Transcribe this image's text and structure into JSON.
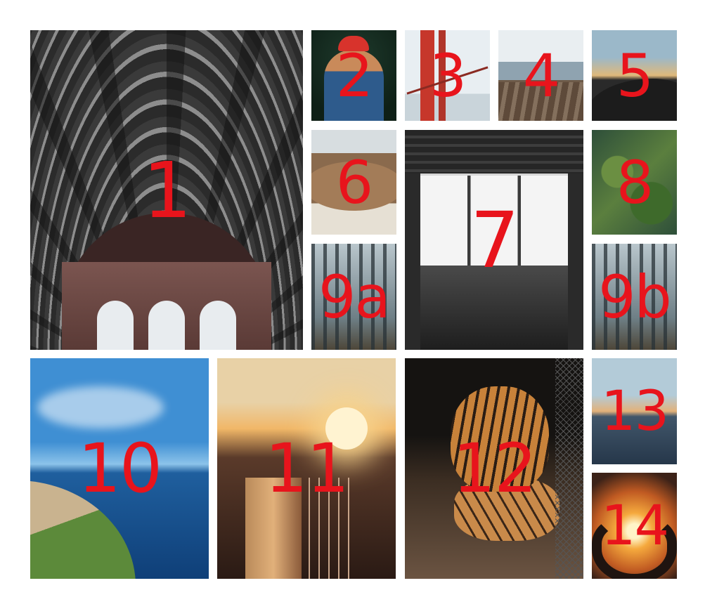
{
  "collage": {
    "tiles": [
      {
        "id": "1",
        "label": "1",
        "subject": "train-station-roof"
      },
      {
        "id": "2",
        "label": "2",
        "subject": "photographer-red-hat"
      },
      {
        "id": "3",
        "label": "3",
        "subject": "golden-gate-bridge"
      },
      {
        "id": "4",
        "label": "4",
        "subject": "rocky-coast"
      },
      {
        "id": "5",
        "label": "5",
        "subject": "jumping-silhouette"
      },
      {
        "id": "6",
        "label": "6",
        "subject": "walruses"
      },
      {
        "id": "7",
        "label": "7",
        "subject": "cafe-interior-window"
      },
      {
        "id": "8",
        "label": "8",
        "subject": "aerial-green-landscape"
      },
      {
        "id": "9a",
        "label": "9a",
        "subject": "misty-forest"
      },
      {
        "id": "9b",
        "label": "9b",
        "subject": "misty-forest"
      },
      {
        "id": "10",
        "label": "10",
        "subject": "coastal-cliff-sea"
      },
      {
        "id": "11",
        "label": "11",
        "subject": "city-sunset-train"
      },
      {
        "id": "12",
        "label": "12",
        "subject": "tiger-cub"
      },
      {
        "id": "13",
        "label": "13",
        "subject": "sea-sunset"
      },
      {
        "id": "14",
        "label": "14",
        "subject": "heart-hands-sunset"
      }
    ],
    "label_color": "#e8141c"
  }
}
